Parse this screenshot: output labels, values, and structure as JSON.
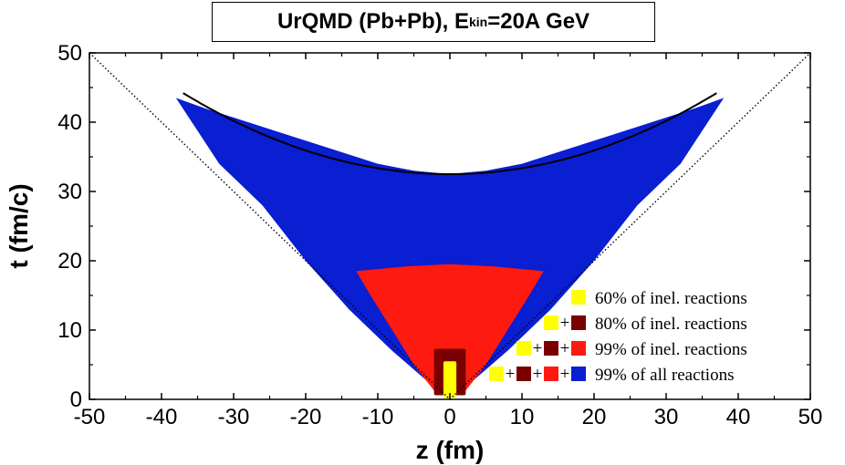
{
  "chart_data": {
    "type": "scatter",
    "title_main": "UrQMD (Pb+Pb), E",
    "title_sub": "kin",
    "title_tail": "=20A GeV",
    "xlabel": "z (fm)",
    "ylabel": "t (fm/c)",
    "xlim": [
      -50,
      50
    ],
    "ylim": [
      0,
      50
    ],
    "x_ticks": [
      "-50",
      "-40",
      "-30",
      "-20",
      "-10",
      "0",
      "10",
      "20",
      "30",
      "40",
      "50"
    ],
    "y_ticks": [
      "0",
      "10",
      "20",
      "30",
      "40",
      "50"
    ],
    "light_cone": [
      [
        -50,
        50
      ],
      [
        0,
        0
      ],
      [
        50,
        50
      ]
    ],
    "fit_curve": {
      "t0": 32.5,
      "z_range": [
        -37,
        37
      ],
      "t_at_edges": 44.2
    },
    "regions": [
      {
        "name": "99% of all reactions",
        "color": "#0a1ed2",
        "outline": [
          [
            -38,
            43.5
          ],
          [
            -34,
            42
          ],
          [
            -28,
            40
          ],
          [
            -22,
            38
          ],
          [
            -16,
            36
          ],
          [
            -10,
            34
          ],
          [
            -5,
            33
          ],
          [
            0,
            32.5
          ],
          [
            5,
            33
          ],
          [
            10,
            34
          ],
          [
            16,
            36
          ],
          [
            22,
            38
          ],
          [
            28,
            40
          ],
          [
            34,
            42
          ],
          [
            38,
            43.5
          ],
          [
            32,
            34
          ],
          [
            26,
            28
          ],
          [
            20,
            20
          ],
          [
            14,
            13
          ],
          [
            8,
            7
          ],
          [
            3,
            2.5
          ],
          [
            0,
            0.8
          ],
          [
            -3,
            2.5
          ],
          [
            -8,
            7
          ],
          [
            -14,
            13
          ],
          [
            -20,
            20
          ],
          [
            -26,
            28
          ],
          [
            -32,
            34
          ]
        ]
      },
      {
        "name": "99% of inel. reactions",
        "color": "#ff1a10",
        "outline": [
          [
            -13,
            18.5
          ],
          [
            -6,
            19.2
          ],
          [
            0,
            19.5
          ],
          [
            6,
            19.2
          ],
          [
            13,
            18.5
          ],
          [
            11,
            15
          ],
          [
            8,
            10
          ],
          [
            5,
            5
          ],
          [
            2,
            1
          ],
          [
            0,
            0.3
          ],
          [
            -2,
            1
          ],
          [
            -5,
            5
          ],
          [
            -8,
            10
          ],
          [
            -11,
            15
          ]
        ]
      },
      {
        "name": "80% of inel. reactions",
        "color": "#7a0000",
        "rect": {
          "z": [
            -2.2,
            2.2
          ],
          "t": [
            0.6,
            7.3
          ]
        }
      },
      {
        "name": "60% of inel. reactions",
        "color": "#ffff00",
        "rect": {
          "z": [
            -0.9,
            0.9
          ],
          "t": [
            0.2,
            5.5
          ]
        }
      }
    ],
    "legend": [
      {
        "label": "60% of inel. reactions",
        "colors": [
          "#ffff00"
        ]
      },
      {
        "label": "80% of inel. reactions",
        "colors": [
          "#ffff00",
          "#7a0000"
        ]
      },
      {
        "label": "99% of inel. reactions",
        "colors": [
          "#ffff00",
          "#7a0000",
          "#ff1a10"
        ]
      },
      {
        "label": "99% of all reactions",
        "colors": [
          "#ffff00",
          "#7a0000",
          "#ff1a10",
          "#0a1ed2"
        ]
      }
    ],
    "legend_position": "bottom-right",
    "plus_sign": "+"
  }
}
